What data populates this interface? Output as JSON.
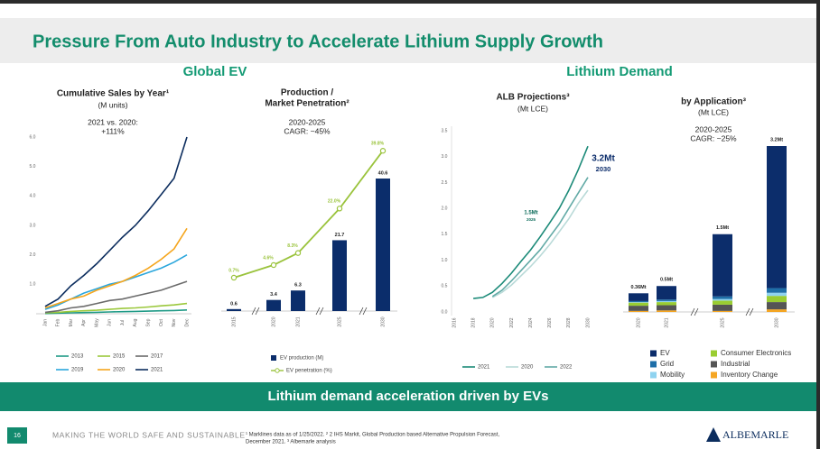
{
  "title": "Pressure From Auto Industry to Accelerate Lithium Supply Growth",
  "sections": [
    "Global EV",
    "Lithium Demand"
  ],
  "banner": "Lithium demand acceleration driven by EVs",
  "footer": {
    "page": "16",
    "tagline": "MAKING THE WORLD SAFE AND SUSTAINABLE",
    "notes": [
      "¹ Marklines data as of 1/25/2022. ² 2 IHS Markit, Global Production based Alternative Propulsion Forecast,",
      "December 2021. ³ Albemarle analysis"
    ],
    "logo": "ALBEMARLE"
  },
  "chart_data": [
    {
      "type": "line",
      "title": "Cumulative Sales by Year¹",
      "subtitle": "(M units)",
      "annotation": [
        "2021 vs. 2020:",
        "+111%"
      ],
      "categories": [
        "Jan",
        "Feb",
        "Mar",
        "Apr",
        "May",
        "Jun",
        "Jul",
        "Aug",
        "Sep",
        "Oct",
        "Nov",
        "Dec"
      ],
      "ylim": [
        0,
        6
      ],
      "yticks": [
        {
          "value": 1,
          "label": "1.0"
        },
        {
          "value": 2,
          "label": "2.0"
        },
        {
          "value": 3,
          "label": "3.0"
        },
        {
          "value": 4,
          "label": "4.0"
        },
        {
          "value": 5,
          "label": "5.0"
        },
        {
          "value": 6,
          "label": "6.0"
        }
      ],
      "grid": false,
      "series": [
        {
          "name": "2013",
          "color": "#1f9a86",
          "values": [
            0.01,
            0.02,
            0.03,
            0.04,
            0.05,
            0.06,
            0.07,
            0.08,
            0.09,
            0.1,
            0.11,
            0.13
          ]
        },
        {
          "name": "2015",
          "color": "#9bc83c",
          "values": [
            0.03,
            0.05,
            0.08,
            0.1,
            0.12,
            0.15,
            0.18,
            0.2,
            0.23,
            0.27,
            0.3,
            0.35
          ]
        },
        {
          "name": "2017",
          "color": "#6b6b6b",
          "values": [
            0.05,
            0.1,
            0.2,
            0.25,
            0.35,
            0.45,
            0.5,
            0.6,
            0.7,
            0.8,
            0.95,
            1.1
          ]
        },
        {
          "name": "2019",
          "color": "#2aa6dc",
          "values": [
            0.15,
            0.3,
            0.5,
            0.7,
            0.85,
            1.0,
            1.1,
            1.25,
            1.4,
            1.55,
            1.75,
            2.0
          ]
        },
        {
          "name": "2020",
          "color": "#f5a51c",
          "values": [
            0.2,
            0.35,
            0.5,
            0.6,
            0.8,
            0.95,
            1.1,
            1.3,
            1.55,
            1.85,
            2.2,
            2.9
          ]
        },
        {
          "name": "2021",
          "color": "#0c2d5e",
          "values": [
            0.25,
            0.5,
            0.95,
            1.3,
            1.7,
            2.15,
            2.6,
            3.0,
            3.5,
            4.05,
            4.6,
            6.0
          ]
        }
      ]
    },
    {
      "type": "bar_line",
      "title": [
        "Production /",
        "Market Penetration²"
      ],
      "annotation": [
        "2020-2025",
        "CAGR: ~45%"
      ],
      "categories": [
        "2015",
        "2020",
        "2021",
        "2025",
        "2030"
      ],
      "series": [
        {
          "name": "EV production (M)",
          "color": "#0b2d6b",
          "values": [
            0.6,
            3.4,
            6.3,
            21.7,
            40.6
          ]
        },
        {
          "name": "EV penetration (%)",
          "color": "#9ac33c",
          "values": [
            0.7,
            4.6,
            8.3,
            22.0,
            39.8
          ],
          "value_labels": [
            "0.7%",
            "4.6%",
            "8.3%",
            "22.0%",
            "39.8%"
          ]
        }
      ]
    },
    {
      "type": "line",
      "title": "ALB Projections³",
      "subtitle": "(Mt LCE)",
      "x": [
        2018,
        2019,
        2020,
        2021,
        2022,
        2023,
        2024,
        2025,
        2026,
        2027,
        2028,
        2029,
        2030
      ],
      "xlim": [
        2016,
        2030
      ],
      "xticks": [
        2016,
        2018,
        2020,
        2022,
        2024,
        2026,
        2028,
        2030
      ],
      "ylim": [
        0,
        3.5
      ],
      "yticks": [
        {
          "value": 0,
          "label": "0.0"
        },
        0.5,
        {
          "value": 1,
          "label": "1.0"
        },
        1.5,
        {
          "value": 2,
          "label": "2.0"
        },
        2.5,
        {
          "value": 3,
          "label": "3.0"
        },
        3.5
      ],
      "grid": false,
      "annotations": [
        {
          "label": "1.5Mt",
          "sub": "2025"
        },
        {
          "label": "3.2Mt",
          "sub": "2030"
        }
      ],
      "series": [
        {
          "name": "2021",
          "color": "#1b8a78",
          "values": [
            0.26,
            0.28,
            0.38,
            0.55,
            0.75,
            0.98,
            1.2,
            1.45,
            1.72,
            2.0,
            2.35,
            2.75,
            3.2
          ]
        },
        {
          "name": "2020",
          "color": "#b9dad8",
          "values": [
            null,
            null,
            0.28,
            0.38,
            0.52,
            0.7,
            0.88,
            1.08,
            1.3,
            1.55,
            1.8,
            2.1,
            2.35
          ]
        },
        {
          "name": "2022",
          "color": "#62aaa6",
          "values": [
            null,
            null,
            0.3,
            0.42,
            0.6,
            0.8,
            1.0,
            1.2,
            1.45,
            1.7,
            2.0,
            2.3,
            2.6
          ]
        }
      ]
    },
    {
      "type": "stacked_bar",
      "title": "by Application³",
      "subtitle": "(Mt LCE)",
      "annotation": [
        "2020-2025",
        "CAGR: ~25%"
      ],
      "categories": [
        "2020",
        "2021",
        "2025",
        "2030"
      ],
      "total_labels": [
        "0.36Mt",
        "0.5Mt",
        "1.5Mt",
        "3.2Mt"
      ],
      "series": [
        {
          "name": "EV",
          "color": "#0c2d6b",
          "values": [
            0.15,
            0.26,
            1.2,
            2.74
          ]
        },
        {
          "name": "Grid",
          "color": "#1f6fa8",
          "values": [
            0.02,
            0.03,
            0.05,
            0.09
          ]
        },
        {
          "name": "Mobility",
          "color": "#8fd3f0",
          "values": [
            0.01,
            0.02,
            0.03,
            0.06
          ]
        },
        {
          "name": "Consumer Electronics",
          "color": "#9acd32",
          "values": [
            0.06,
            0.06,
            0.08,
            0.12
          ]
        },
        {
          "name": "Industrial",
          "color": "#555555",
          "values": [
            0.1,
            0.1,
            0.12,
            0.14
          ]
        },
        {
          "name": "Inventory Change",
          "color": "#f5a623",
          "values": [
            0.02,
            0.03,
            0.02,
            0.05
          ]
        }
      ]
    }
  ]
}
